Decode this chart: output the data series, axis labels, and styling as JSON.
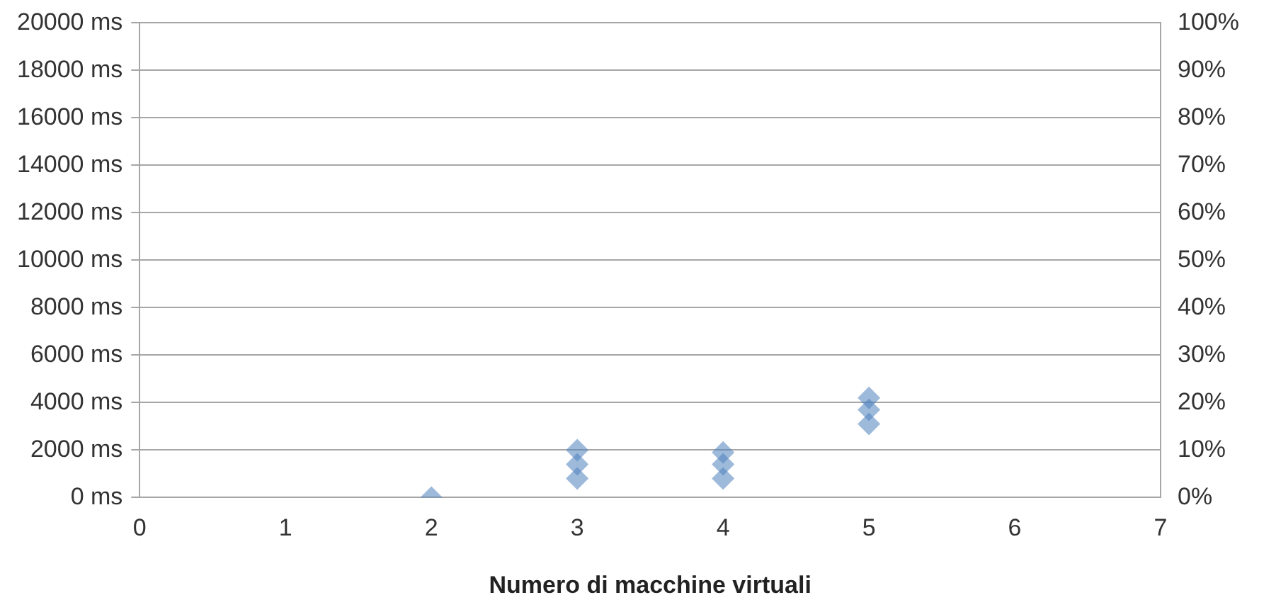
{
  "chart_data": {
    "type": "scatter",
    "xlabel": "Numero di macchine virtuali",
    "xlim": [
      0,
      7
    ],
    "xticks": [
      0,
      1,
      2,
      3,
      4,
      5,
      6,
      7
    ],
    "ylim": [
      0,
      20000
    ],
    "yticks": [
      {
        "value": 0,
        "label": "0 ms"
      },
      {
        "value": 2000,
        "label": "2000 ms"
      },
      {
        "value": 4000,
        "label": "4000 ms"
      },
      {
        "value": 6000,
        "label": "6000 ms"
      },
      {
        "value": 8000,
        "label": "8000 ms"
      },
      {
        "value": 10000,
        "label": "10000 ms"
      },
      {
        "value": 12000,
        "label": "12000 ms"
      },
      {
        "value": 14000,
        "label": "14000 ms"
      },
      {
        "value": 16000,
        "label": "16000 ms"
      },
      {
        "value": 18000,
        "label": "18000 ms"
      },
      {
        "value": 20000,
        "label": "20000 ms"
      }
    ],
    "y2lim": [
      0,
      100
    ],
    "y2ticks": [
      {
        "value": 0,
        "label": "0%"
      },
      {
        "value": 10,
        "label": "10%"
      },
      {
        "value": 20,
        "label": "20%"
      },
      {
        "value": 30,
        "label": "30%"
      },
      {
        "value": 40,
        "label": "40%"
      },
      {
        "value": 50,
        "label": "50%"
      },
      {
        "value": 60,
        "label": "60%"
      },
      {
        "value": 70,
        "label": "70%"
      },
      {
        "value": 80,
        "label": "80%"
      },
      {
        "value": 90,
        "label": "90%"
      },
      {
        "value": 100,
        "label": "100%"
      }
    ],
    "grid": "y",
    "marker": "diamond",
    "legend": false,
    "series": [
      {
        "color": "#4f81bd",
        "x": [
          2,
          3,
          3,
          3,
          4,
          4,
          4,
          5,
          5,
          5
        ],
        "values": [
          0,
          800,
          1400,
          2000,
          800,
          1400,
          1900,
          3100,
          3700,
          4200
        ]
      }
    ]
  }
}
